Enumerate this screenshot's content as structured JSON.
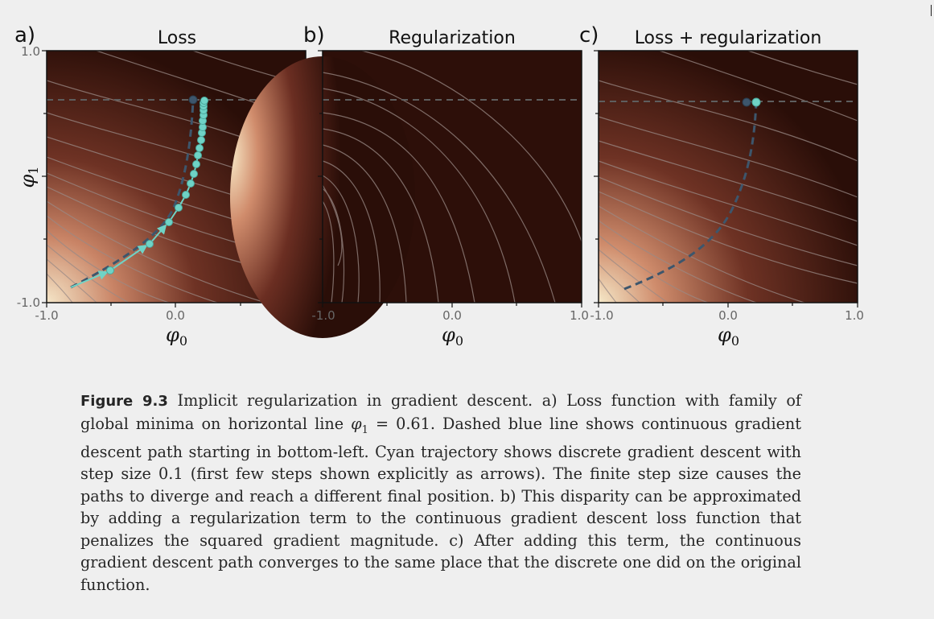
{
  "panels": [
    {
      "letter": "a)",
      "title": "Loss"
    },
    {
      "letter": "b)",
      "title": "Regularization"
    },
    {
      "letter": "c)",
      "title": "Loss + regularization"
    }
  ],
  "axes": {
    "x_tick_labels": [
      "-1.0",
      "0.0",
      "1.0"
    ],
    "y_tick_labels": [
      "1.0",
      "-1.0"
    ],
    "x_label": "φ",
    "x_label_sub": "0",
    "y_label": "φ",
    "y_label_sub": "1"
  },
  "colors": {
    "background": "#efefef",
    "heatmap_dark": "#2a0e08",
    "heatmap_light": "#f5e6c8",
    "contour": "#9a8a86",
    "continuous_path": "#3d566c",
    "discrete_path": "#6fd3c6",
    "minima_line": "#5e5e5e"
  },
  "chart_data": [
    {
      "type": "heatmap",
      "title": "Loss",
      "xlabel": "φ0",
      "ylabel": "φ1",
      "xlim": [
        -1.0,
        1.0
      ],
      "ylim": [
        -1.0,
        1.0
      ],
      "x_ticks": [
        -1.0,
        0.0,
        1.0
      ],
      "y_ticks": [
        -1.0,
        1.0
      ],
      "global_minima_line_phi1": 0.61,
      "continuous_path": {
        "style": "dashed",
        "start": [
          -0.8,
          -0.85
        ],
        "end": [
          0.15,
          0.61
        ]
      },
      "discrete_trajectory": {
        "step_size": 0.1,
        "arrow_steps": [
          [
            -0.8,
            -0.87
          ],
          [
            -0.48,
            -0.73
          ],
          [
            -0.2,
            -0.53
          ],
          [
            -0.05,
            -0.37
          ]
        ],
        "points": [
          [
            -0.48,
            -0.73
          ],
          [
            -0.2,
            -0.53
          ],
          [
            -0.05,
            -0.37
          ],
          [
            0.03,
            -0.26
          ],
          [
            0.08,
            -0.17
          ],
          [
            0.11,
            -0.09
          ],
          [
            0.13,
            -0.02
          ],
          [
            0.15,
            0.05
          ],
          [
            0.16,
            0.12
          ],
          [
            0.17,
            0.18
          ],
          [
            0.18,
            0.24
          ],
          [
            0.19,
            0.29
          ],
          [
            0.19,
            0.34
          ],
          [
            0.2,
            0.39
          ],
          [
            0.2,
            0.43
          ],
          [
            0.21,
            0.47
          ],
          [
            0.21,
            0.51
          ],
          [
            0.21,
            0.54
          ],
          [
            0.22,
            0.57
          ],
          [
            0.22,
            0.59
          ],
          [
            0.22,
            0.61
          ]
        ],
        "final_position": [
          0.22,
          0.61
        ]
      },
      "continuous_endpoint": [
        0.15,
        0.61
      ]
    },
    {
      "type": "heatmap",
      "title": "Regularization",
      "xlabel": "φ0",
      "xlim": [
        -1.0,
        1.0
      ],
      "ylim": [
        -1.0,
        1.0
      ],
      "x_ticks": [
        -1.0,
        0.0,
        1.0
      ],
      "global_minima_line_phi1": 0.61,
      "bright_region": [
        -1.0,
        -0.3
      ]
    },
    {
      "type": "heatmap",
      "title": "Loss + regularization",
      "xlabel": "φ0",
      "xlim": [
        -1.0,
        1.0
      ],
      "ylim": [
        -1.0,
        1.0
      ],
      "x_ticks": [
        -1.0,
        0.0,
        1.0
      ],
      "global_minima_line_phi1": 0.61,
      "continuous_path": {
        "style": "dashed",
        "start": [
          -0.8,
          -0.9
        ],
        "end": [
          0.22,
          0.61
        ]
      },
      "points": [
        [
          0.15,
          0.61
        ],
        [
          0.22,
          0.61
        ]
      ]
    }
  ],
  "caption": {
    "label": "Figure 9.3",
    "part1": " Implicit regularization in gradient descent. a) Loss function with family of global minima on horizontal line ",
    "math_var": "φ",
    "math_sub": "1",
    "math_rest": " = 0.61",
    "part2": ". Dashed blue line shows continuous gradient descent path starting in bottom-left. Cyan trajectory shows discrete gradient descent with step size 0.1 (first few steps shown explicitly as arrows). The finite step size causes the paths to diverge and reach a different final position. b) This disparity can be approximated by adding a regularization term to the continuous gradient descent loss function that penalizes the squared gradient magnitude. c) After adding this term, the continuous gradient descent path converges to the same place that the discrete one did on the original function."
  }
}
